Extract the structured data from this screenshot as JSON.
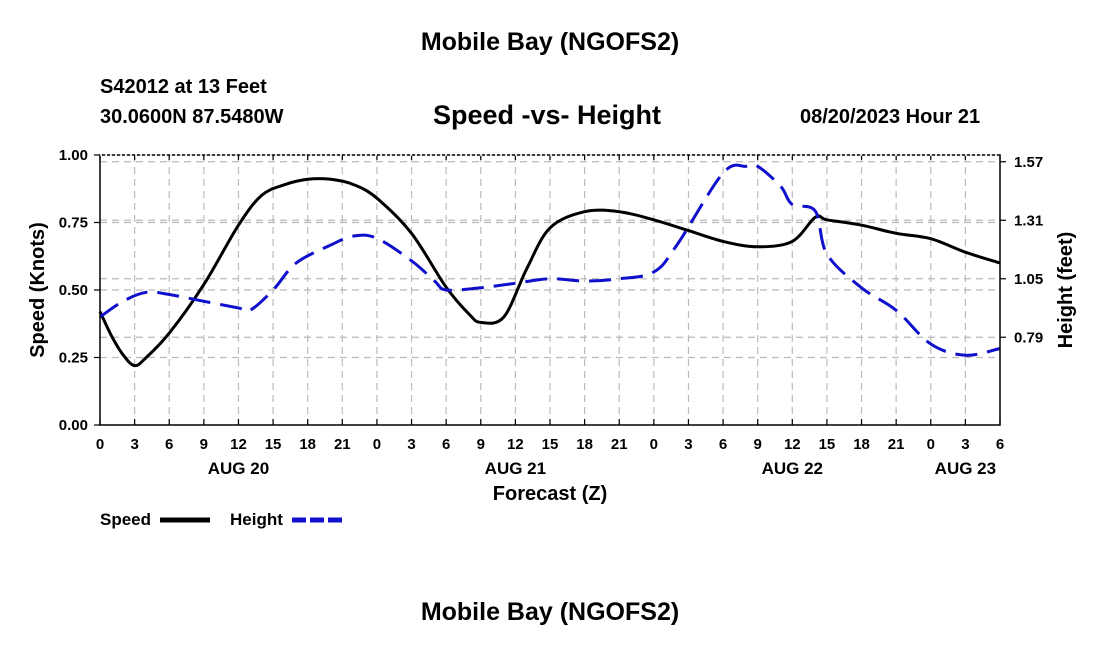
{
  "page_title": "Mobile Bay (NGOFS2)",
  "page_title_bottom": "Mobile Bay (NGOFS2)",
  "station": "S42012 at 13 Feet",
  "coords": "30.0600N  87.5480W",
  "subtitle": "Speed -vs- Height",
  "datetime": "08/20/2023 Hour 21",
  "colors": {
    "speed": "#000000",
    "height": "#1010cc",
    "grid": "#bbbbbb"
  },
  "chart_data": {
    "type": "line",
    "title": "Speed -vs- Height",
    "xlabel": "Forecast (Z)",
    "ylabel": "Speed (Knots)",
    "y2label": "Height (feet)",
    "x_range": [
      0,
      78
    ],
    "x_ticks": [
      0,
      3,
      6,
      9,
      12,
      15,
      18,
      21,
      24,
      27,
      30,
      33,
      36,
      39,
      42,
      45,
      48,
      51,
      54,
      57,
      60,
      63,
      66,
      69,
      72,
      75,
      78
    ],
    "x_tick_labels": [
      "0",
      "3",
      "6",
      "9",
      "12",
      "15",
      "18",
      "21",
      "0",
      "3",
      "6",
      "9",
      "12",
      "15",
      "18",
      "21",
      "0",
      "3",
      "6",
      "9",
      "12",
      "15",
      "18",
      "21",
      "0",
      "3",
      "6"
    ],
    "date_labels": [
      {
        "label": "AUG 20",
        "x": 12
      },
      {
        "label": "AUG 21",
        "x": 36
      },
      {
        "label": "AUG 22",
        "x": 60
      },
      {
        "label": "AUG 23",
        "x": 75
      }
    ],
    "ylim": [
      0,
      1.0
    ],
    "y_ticks": [
      0,
      0.25,
      0.5,
      0.75,
      1.0
    ],
    "y_tick_labels": [
      "0.00",
      "0.25",
      "0.50",
      "0.75",
      "1.00"
    ],
    "y2lim": [
      0.4,
      1.6
    ],
    "y2_ticks": [
      0.79,
      1.05,
      1.31,
      1.57
    ],
    "y2_tick_labels": [
      "0.79",
      "1.05",
      "1.31",
      "1.57"
    ],
    "series": [
      {
        "name": "Speed",
        "axis": "left",
        "style": "solid",
        "x": [
          0,
          1,
          2,
          3,
          4,
          6,
          9,
          12,
          14,
          16,
          18,
          20,
          22,
          24,
          27,
          30,
          32,
          33,
          35,
          37,
          39,
          42,
          45,
          48,
          51,
          54,
          57,
          60,
          62,
          63,
          66,
          69,
          72,
          75,
          78
        ],
        "values": [
          0.42,
          0.33,
          0.26,
          0.22,
          0.25,
          0.34,
          0.52,
          0.74,
          0.85,
          0.89,
          0.91,
          0.91,
          0.89,
          0.84,
          0.71,
          0.51,
          0.41,
          0.38,
          0.4,
          0.58,
          0.73,
          0.79,
          0.79,
          0.76,
          0.72,
          0.68,
          0.66,
          0.68,
          0.77,
          0.76,
          0.74,
          0.71,
          0.69,
          0.64,
          0.6
        ]
      },
      {
        "name": "Height",
        "axis": "right",
        "style": "dashed",
        "x": [
          0,
          2,
          4,
          6,
          9,
          12,
          13,
          15,
          17,
          20,
          22,
          24,
          27,
          29,
          30,
          33,
          36,
          39,
          42,
          45,
          48,
          50,
          54,
          56,
          57,
          59,
          60,
          62,
          63,
          66,
          69,
          72,
          75,
          78
        ],
        "values": [
          0.88,
          0.95,
          0.99,
          0.98,
          0.95,
          0.92,
          0.91,
          1.0,
          1.12,
          1.2,
          1.24,
          1.23,
          1.13,
          1.04,
          1.0,
          1.01,
          1.03,
          1.05,
          1.04,
          1.05,
          1.08,
          1.2,
          1.52,
          1.55,
          1.55,
          1.46,
          1.38,
          1.35,
          1.16,
          1.01,
          0.91,
          0.76,
          0.71,
          0.74
        ]
      }
    ],
    "legend": [
      {
        "label": "Speed",
        "style": "solid"
      },
      {
        "label": "Height",
        "style": "dashed"
      }
    ],
    "legend_position": "bottom-left",
    "grid": true
  }
}
